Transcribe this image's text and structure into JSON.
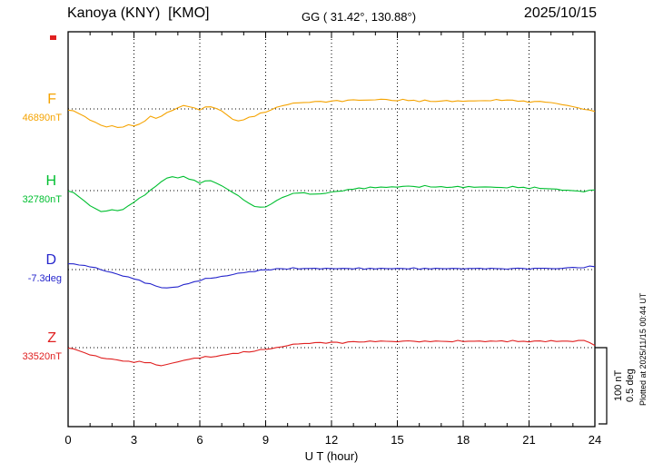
{
  "header": {
    "station": "Kanoya (KNY)  [KMO]",
    "coords": "GG ( 31.42°, 130.88°)",
    "date": "2025/10/15"
  },
  "chart_data": {
    "type": "line",
    "title": "Kanoya (KNY) [KMO] magnetogram 2025/10/15",
    "xlabel": "U T (hour)",
    "x_range": [
      0,
      24
    ],
    "x_ticks": [
      0,
      3,
      6,
      9,
      12,
      15,
      18,
      21,
      24
    ],
    "x_step_hours": 0.25,
    "grid": "dotted vertical lines every 3 hours; dotted horizontal baseline per component",
    "legend_position": "left of each trace baseline",
    "scale_labels": [
      "100 nT",
      "0.5 deg"
    ],
    "plotted_note": "Plotted at 2025/11/15 00:44 UT",
    "series": [
      {
        "name": "F",
        "baseline_label": "46890nT",
        "baseline_value": 46890,
        "unit": "nT",
        "color": "#f5a300",
        "values": [
          -1,
          -3,
          -6,
          -10,
          -14,
          -18,
          -21,
          -23,
          -22,
          -24,
          -23,
          -21,
          -22,
          -20,
          -15,
          -10,
          -12,
          -9,
          -5,
          -2,
          2,
          4,
          3,
          1,
          -1,
          2,
          3,
          1,
          -3,
          -8,
          -13,
          -16,
          -14,
          -11,
          -9,
          -6,
          -4,
          -1,
          2,
          4,
          6,
          7,
          8,
          8,
          9,
          9,
          10,
          9,
          10,
          11,
          10,
          11,
          12,
          11,
          12,
          11,
          12,
          13,
          12,
          11,
          11,
          12,
          11,
          11,
          10,
          11,
          10,
          10,
          10,
          11,
          10,
          10,
          10,
          10,
          11,
          10,
          11,
          11,
          12,
          11,
          12,
          11,
          10,
          10,
          9,
          9,
          10,
          9,
          8,
          7,
          6,
          4,
          3,
          1,
          0,
          -2,
          -3
        ]
      },
      {
        "name": "H",
        "baseline_label": "32780nT",
        "baseline_value": 32780,
        "unit": "nT",
        "color": "#00bf30",
        "values": [
          0,
          -3,
          -8,
          -14,
          -19,
          -24,
          -27,
          -26,
          -25,
          -26,
          -24,
          -20,
          -15,
          -10,
          -5,
          0,
          6,
          12,
          16,
          18,
          17,
          18,
          15,
          13,
          10,
          12,
          13,
          10,
          6,
          2,
          -2,
          -7,
          -12,
          -17,
          -20,
          -22,
          -21,
          -17,
          -13,
          -9,
          -6,
          -4,
          -3,
          -3,
          -4,
          -5,
          -4,
          -3,
          -2,
          -1,
          0,
          1,
          2,
          3,
          3,
          4,
          4,
          5,
          4,
          5,
          5,
          5,
          6,
          5,
          5,
          6,
          5,
          5,
          5,
          4,
          5,
          5,
          4,
          5,
          5,
          4,
          5,
          5,
          4,
          4,
          4,
          5,
          4,
          4,
          3,
          4,
          3,
          3,
          2,
          2,
          1,
          0,
          0,
          -1,
          -1,
          0,
          1
        ]
      },
      {
        "name": "D",
        "baseline_label": "-7.3deg",
        "baseline_value": -7.3,
        "unit": "deg",
        "color": "#2525cc",
        "values": [
          0.04,
          0.035,
          0.03,
          0.025,
          0.02,
          0.01,
          0,
          -0.01,
          -0.02,
          -0.03,
          -0.04,
          -0.05,
          -0.06,
          -0.07,
          -0.085,
          -0.095,
          -0.105,
          -0.115,
          -0.12,
          -0.115,
          -0.11,
          -0.1,
          -0.09,
          -0.08,
          -0.07,
          -0.06,
          -0.055,
          -0.05,
          -0.045,
          -0.04,
          -0.03,
          -0.025,
          -0.02,
          -0.015,
          -0.01,
          -0.005,
          0,
          0,
          0.005,
          0.005,
          0.005,
          0.01,
          0.005,
          0.005,
          0.01,
          0.005,
          0.005,
          0.01,
          0.005,
          0.005,
          0.01,
          0.005,
          0.005,
          0.01,
          0.005,
          0.005,
          0.005,
          0.01,
          0.005,
          0.005,
          0.01,
          0.005,
          0.005,
          0.01,
          0.005,
          0.005,
          0.005,
          0.01,
          0.005,
          0.005,
          0.01,
          0.005,
          0.005,
          0.005,
          0.01,
          0.005,
          0.005,
          0.01,
          0.005,
          0.005,
          0.005,
          0.005,
          0.01,
          0.005,
          0.005,
          0.005,
          0.01,
          0.01,
          0.005,
          0.005,
          0.01,
          0.01,
          0.015,
          0.01,
          0.015,
          0.02,
          0.02
        ]
      },
      {
        "name": "Z",
        "baseline_label": "33520nT",
        "baseline_value": 33520,
        "unit": "nT",
        "color": "#e02020",
        "values": [
          0,
          -2,
          -4,
          -7,
          -9,
          -11,
          -13,
          -14,
          -15,
          -16,
          -17,
          -18,
          -19,
          -18,
          -19,
          -20,
          -22,
          -23,
          -22,
          -20,
          -18,
          -17,
          -15,
          -14,
          -13,
          -12,
          -12,
          -11,
          -10,
          -9,
          -7,
          -8,
          -5,
          -6,
          -4,
          -3,
          -2,
          -1,
          0,
          1,
          3,
          4,
          5,
          5,
          6,
          6,
          7,
          6,
          7,
          7,
          6,
          7,
          8,
          7,
          8,
          8,
          8,
          9,
          8,
          8,
          8,
          8,
          9,
          8,
          8,
          8,
          8,
          9,
          8,
          8,
          8,
          9,
          8,
          8,
          9,
          8,
          8,
          9,
          8,
          9,
          8,
          9,
          8,
          8,
          8,
          8,
          9,
          8,
          9,
          8,
          9,
          8,
          8,
          9,
          10,
          6,
          3
        ]
      }
    ]
  }
}
